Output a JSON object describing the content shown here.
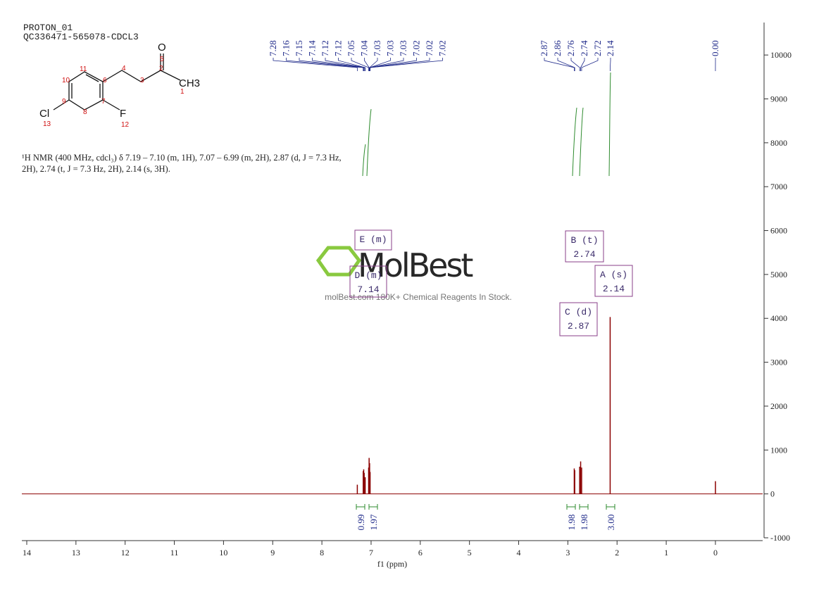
{
  "header": {
    "lines": [
      "PROTON_01",
      "QC336471-565078-CDCL3"
    ]
  },
  "structure": {
    "labels": [
      "O",
      "5",
      "2",
      "4",
      "3",
      "11",
      "10",
      "6",
      "CH3",
      "1",
      "9",
      "7",
      "8",
      "Cl",
      "13",
      "F",
      "12"
    ]
  },
  "description": {
    "lines": [
      "¹H NMR (400 MHz, cdcl₃) δ 7.19 – 7.10 (m, 1H), 7.07 – 6.99 (m, 2H), 2.87 (d, J = 7.3 Hz,",
      "2H), 2.74 (t, J = 7.3 Hz, 2H), 2.14 (s, 3H)."
    ]
  },
  "watermark": {
    "brand": "MolBest",
    "tagline": "molBest.com 180K+ Chemical Reagents In Stock."
  },
  "chart_data": {
    "type": "nmr",
    "xlabel": "f1 (ppm)",
    "xlim": [
      14.1,
      -0.96
    ],
    "xticks": [
      14,
      13,
      12,
      11,
      10,
      9,
      8,
      7,
      6,
      5,
      4,
      3,
      2,
      1,
      0
    ],
    "ylim": [
      -1000,
      10740
    ],
    "yticks": [
      -1000,
      0,
      1000,
      2000,
      3000,
      4000,
      5000,
      6000,
      7000,
      8000,
      9000,
      10000
    ],
    "x": [
      7.28,
      7.16,
      7.15,
      7.14,
      7.12,
      7.05,
      7.04,
      7.03,
      7.02,
      2.87,
      2.86,
      2.76,
      2.74,
      2.72,
      2.14,
      0
    ],
    "values": [
      210,
      520,
      560,
      480,
      380,
      600,
      820,
      700,
      500,
      580,
      540,
      620,
      740,
      600,
      4030,
      290
    ],
    "color": "#8b0000",
    "peak_labels": [
      "7.28",
      "7.16",
      "7.15",
      "7.14",
      "7.12",
      "7.12",
      "7.05",
      "7.04",
      "7.03",
      "7.03",
      "7.03",
      "7.02",
      "7.02",
      "7.02",
      "2.87",
      "2.86",
      "2.76",
      "2.74",
      "2.72",
      "2.14",
      "0.00"
    ],
    "integrals": [
      "0.99",
      "1.97",
      "1.98",
      "1.98",
      "3.00"
    ],
    "multiplets": [
      {
        "label": "E (m)"
      },
      {
        "label": "D (m)",
        "shift": "7.14"
      },
      {
        "label": "B (t)",
        "shift": "2.74"
      },
      {
        "label": "A (s)",
        "shift": "2.14"
      },
      {
        "label": "C (d)",
        "shift": "2.87"
      }
    ]
  }
}
